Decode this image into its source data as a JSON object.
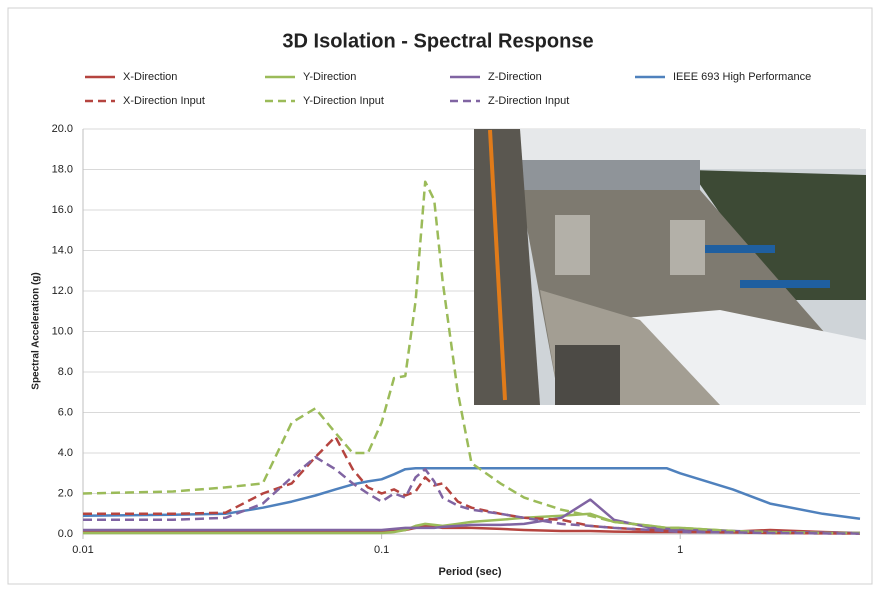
{
  "chart_data": {
    "type": "line",
    "title": "3D Isolation - Spectral Response",
    "x_label": "Period (sec)",
    "y_label": "Spectral Acceleration (g)",
    "log_x": true,
    "grid": true,
    "xlim": [
      0.01,
      4
    ],
    "xticks": [
      0.01,
      0.1,
      1
    ],
    "ylim": [
      0,
      20
    ],
    "yticks": [
      {
        "value": 0,
        "label": "0.0"
      },
      {
        "value": 2,
        "label": "2.0"
      },
      {
        "value": 4,
        "label": "4.0"
      },
      {
        "value": 6,
        "label": "6.0"
      },
      {
        "value": 8,
        "label": "8.0"
      },
      {
        "value": 10,
        "label": "10.0"
      },
      {
        "value": 12,
        "label": "12.0"
      },
      {
        "value": 14,
        "label": "14.0"
      },
      {
        "value": 16,
        "label": "16.0"
      },
      {
        "value": 18,
        "label": "18.0"
      },
      {
        "value": 20,
        "label": "20.0"
      }
    ],
    "x": [
      0.01,
      0.02,
      0.03,
      0.04,
      0.05,
      0.06,
      0.07,
      0.08,
      0.09,
      0.1,
      0.11,
      0.12,
      0.13,
      0.14,
      0.15,
      0.16,
      0.18,
      0.2,
      0.25,
      0.3,
      0.4,
      0.5,
      0.6,
      0.8,
      0.9,
      1,
      1.5,
      2,
      3,
      4
    ],
    "series": [
      {
        "name": "X-Direction",
        "color": "#b5443f",
        "dashed": false,
        "values": [
          0.1,
          0.1,
          0.1,
          0.1,
          0.1,
          0.1,
          0.1,
          0.1,
          0.1,
          0.1,
          0.15,
          0.2,
          0.3,
          0.4,
          0.35,
          0.3,
          0.3,
          0.3,
          0.25,
          0.2,
          0.15,
          0.15,
          0.12,
          0.1,
          0.1,
          0.1,
          0.12,
          0.2,
          0.1,
          0.05
        ]
      },
      {
        "name": "Y-Direction",
        "color": "#9bbb59",
        "dashed": false,
        "values": [
          0.05,
          0.05,
          0.05,
          0.05,
          0.05,
          0.05,
          0.05,
          0.05,
          0.05,
          0.05,
          0.1,
          0.2,
          0.4,
          0.5,
          0.45,
          0.4,
          0.5,
          0.6,
          0.7,
          0.8,
          0.9,
          1.0,
          0.6,
          0.4,
          0.3,
          0.3,
          0.15,
          0.05,
          0.05,
          0.05
        ]
      },
      {
        "name": "Z-Direction",
        "color": "#8064a2",
        "dashed": false,
        "values": [
          0.2,
          0.2,
          0.2,
          0.2,
          0.2,
          0.2,
          0.2,
          0.2,
          0.2,
          0.2,
          0.25,
          0.3,
          0.3,
          0.3,
          0.3,
          0.35,
          0.4,
          0.45,
          0.45,
          0.5,
          0.8,
          1.7,
          0.7,
          0.3,
          0.25,
          0.2,
          0.15,
          0.1,
          0.07,
          0.05
        ]
      },
      {
        "name": "IEEE 693 High Performance",
        "color": "#4f81bd",
        "dashed": false,
        "values": [
          0.9,
          0.95,
          1.0,
          1.3,
          1.6,
          1.9,
          2.2,
          2.45,
          2.6,
          2.7,
          2.95,
          3.2,
          3.25,
          3.25,
          3.25,
          3.25,
          3.25,
          3.25,
          3.25,
          3.25,
          3.25,
          3.25,
          3.25,
          3.25,
          3.25,
          3.0,
          2.2,
          1.5,
          1.0,
          0.75
        ]
      },
      {
        "name": "X-Direction Input",
        "color": "#b5443f",
        "dashed": true,
        "values": [
          1.0,
          1.0,
          1.05,
          2.0,
          2.5,
          3.8,
          4.8,
          3.2,
          2.3,
          2.0,
          2.2,
          1.9,
          2.1,
          2.8,
          2.4,
          2.5,
          1.6,
          1.3,
          1.0,
          0.8,
          0.7,
          0.4,
          0.3,
          0.2,
          0.15,
          0.1,
          0.08,
          0.05,
          0.03,
          0.02
        ]
      },
      {
        "name": "Y-Direction Input",
        "color": "#9bbb59",
        "dashed": true,
        "values": [
          2.0,
          2.1,
          2.3,
          2.5,
          5.5,
          6.2,
          5.0,
          4.0,
          4.0,
          5.5,
          7.7,
          7.8,
          11.5,
          17.4,
          16.5,
          12.5,
          7.0,
          3.5,
          2.5,
          1.8,
          1.2,
          0.9,
          0.6,
          0.4,
          0.3,
          0.3,
          0.15,
          0.1,
          0.05,
          0.05
        ]
      },
      {
        "name": "Z-Direction Input",
        "color": "#8064a2",
        "dashed": true,
        "values": [
          0.7,
          0.7,
          0.8,
          1.5,
          2.8,
          3.8,
          3.2,
          2.5,
          2.0,
          1.6,
          2.0,
          1.8,
          2.8,
          3.2,
          2.6,
          1.8,
          1.4,
          1.2,
          1.0,
          0.8,
          0.5,
          0.4,
          0.3,
          0.2,
          0.15,
          0.1,
          0.08,
          0.05,
          0.03,
          0.02
        ]
      }
    ]
  }
}
